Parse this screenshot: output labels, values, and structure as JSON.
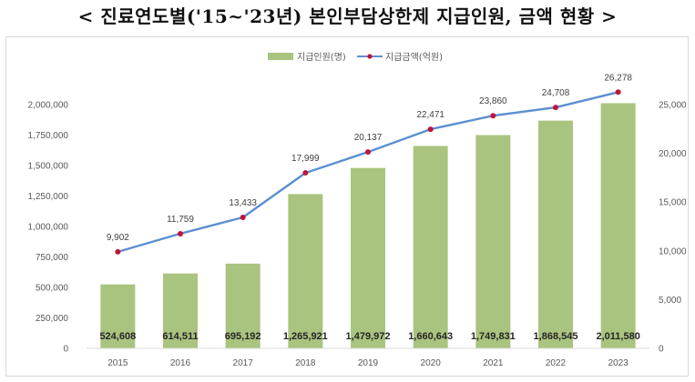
{
  "title": "< 진료연도별('15~'23년) 본인부담상한제 지급인원, 금액 현황 >",
  "chart_data": {
    "type": "bar+line",
    "categories": [
      "2015",
      "2016",
      "2017",
      "2018",
      "2019",
      "2020",
      "2021",
      "2022",
      "2023"
    ],
    "series": [
      {
        "name": "지급인원(명)",
        "type": "bar",
        "axis": "left",
        "color": "#a9c47f",
        "values": [
          524608,
          614511,
          695192,
          1265921,
          1479972,
          1660643,
          1749831,
          1868545,
          2011580
        ],
        "labels": [
          "524,608",
          "614,511",
          "695,192",
          "1,265,921",
          "1,479,972",
          "1,660,643",
          "1,749,831",
          "1,868,545",
          "2,011,580"
        ]
      },
      {
        "name": "지급금액(억원)",
        "type": "line",
        "axis": "right",
        "color": "#5b8fd1",
        "marker_color": "#c0143c",
        "values": [
          9902,
          11759,
          13433,
          17999,
          20137,
          22471,
          23860,
          24708,
          26278
        ],
        "labels": [
          "9,902",
          "11,759",
          "13,433",
          "17,999",
          "20,137",
          "22,471",
          "23,860",
          "24,708",
          "26,278"
        ]
      }
    ],
    "y_left": {
      "ylim": [
        0,
        2000000
      ],
      "ticks": [
        0,
        250000,
        500000,
        750000,
        1000000,
        1250000,
        1500000,
        1750000,
        2000000
      ],
      "tick_labels": [
        "0",
        "250,000",
        "500,000",
        "750,000",
        "1,000,000",
        "1,250,000",
        "1,500,000",
        "1,750,000",
        "2,000,000"
      ]
    },
    "y_right": {
      "ylim": [
        0,
        25000
      ],
      "ticks": [
        0,
        5000,
        10000,
        15000,
        20000,
        25000
      ],
      "tick_labels": [
        "0",
        "5,000",
        "10,000",
        "15,000",
        "20,000",
        "25,000"
      ]
    },
    "grid": false,
    "legend_position": "top-center"
  }
}
